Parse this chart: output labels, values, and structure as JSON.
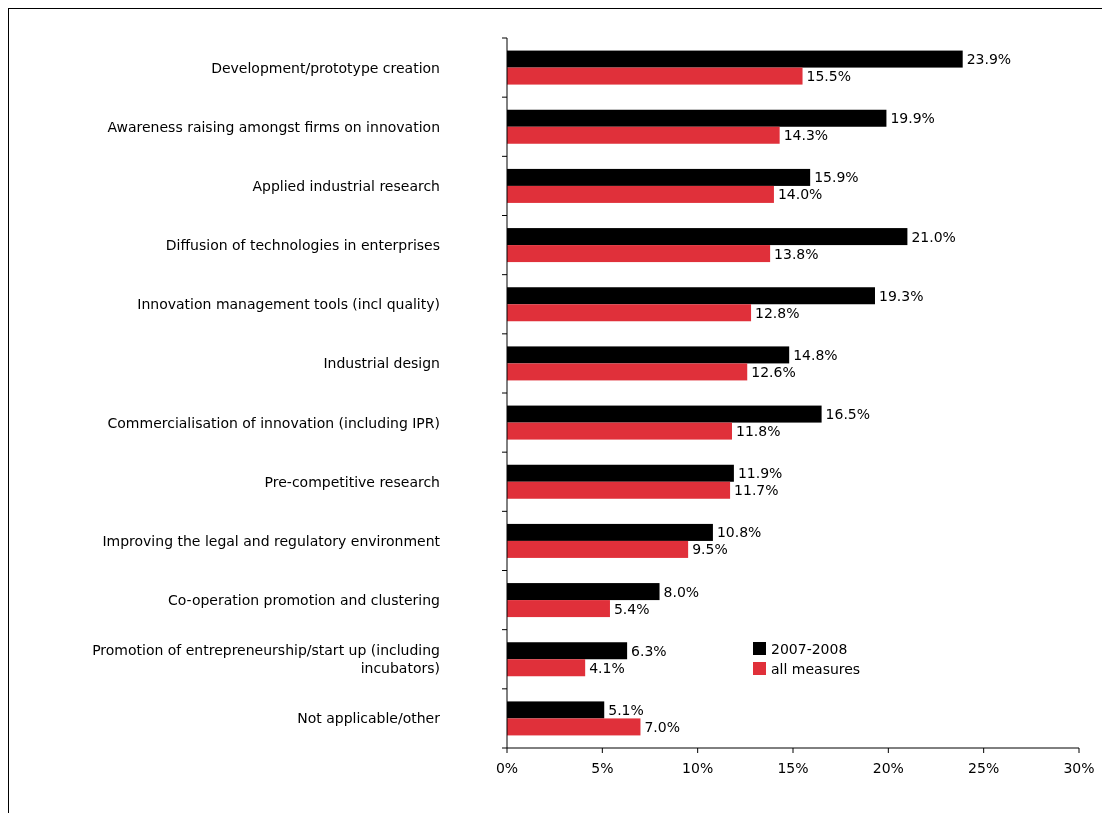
{
  "chart_data": {
    "type": "bar",
    "orientation": "horizontal",
    "categories": [
      "Development/prototype creation",
      "Awareness raising amongst firms on innovation",
      "Applied industrial research",
      "Diffusion of technologies in enterprises",
      "Innovation management tools (incl quality)",
      "Industrial design",
      "Commercialisation of innovation (including IPR)",
      "Pre-competitive research",
      "Improving the legal and regulatory environment",
      "Co-operation promotion and clustering",
      "Promotion of entrepreneurship/start up (including incubators)",
      "Not applicable/other"
    ],
    "series": [
      {
        "name": "2007-2008",
        "color": "#000000",
        "values": [
          23.9,
          19.9,
          15.9,
          21.0,
          19.3,
          14.8,
          16.5,
          11.9,
          10.8,
          8.0,
          6.3,
          5.1
        ],
        "value_labels": [
          "23.9%",
          "19.9%",
          "15.9%",
          "21.0%",
          "19.3%",
          "14.8%",
          "16.5%",
          "11.9%",
          "10.8%",
          "8.0%",
          "6.3%",
          "5.1%"
        ]
      },
      {
        "name": "all measures",
        "color": "#e0303a",
        "values": [
          15.5,
          14.3,
          14.0,
          13.8,
          12.8,
          12.6,
          11.8,
          11.7,
          9.5,
          5.4,
          4.1,
          7.0
        ],
        "value_labels": [
          "15.5%",
          "14.3%",
          "14.0%",
          "13.8%",
          "12.8%",
          "12.6%",
          "11.8%",
          "11.7%",
          "9.5%",
          "5.4%",
          "4.1%",
          "7.0%"
        ]
      }
    ],
    "xlim": [
      0,
      30
    ],
    "xticks": [
      {
        "value": 0,
        "label": "0%"
      },
      {
        "value": 5,
        "label": "5%"
      },
      {
        "value": 10,
        "label": "10%"
      },
      {
        "value": 15,
        "label": "15%"
      },
      {
        "value": 20,
        "label": "20%"
      },
      {
        "value": 25,
        "label": "25%"
      },
      {
        "value": 30,
        "label": "30%"
      }
    ],
    "legend": "bottom right",
    "grid": false
  }
}
